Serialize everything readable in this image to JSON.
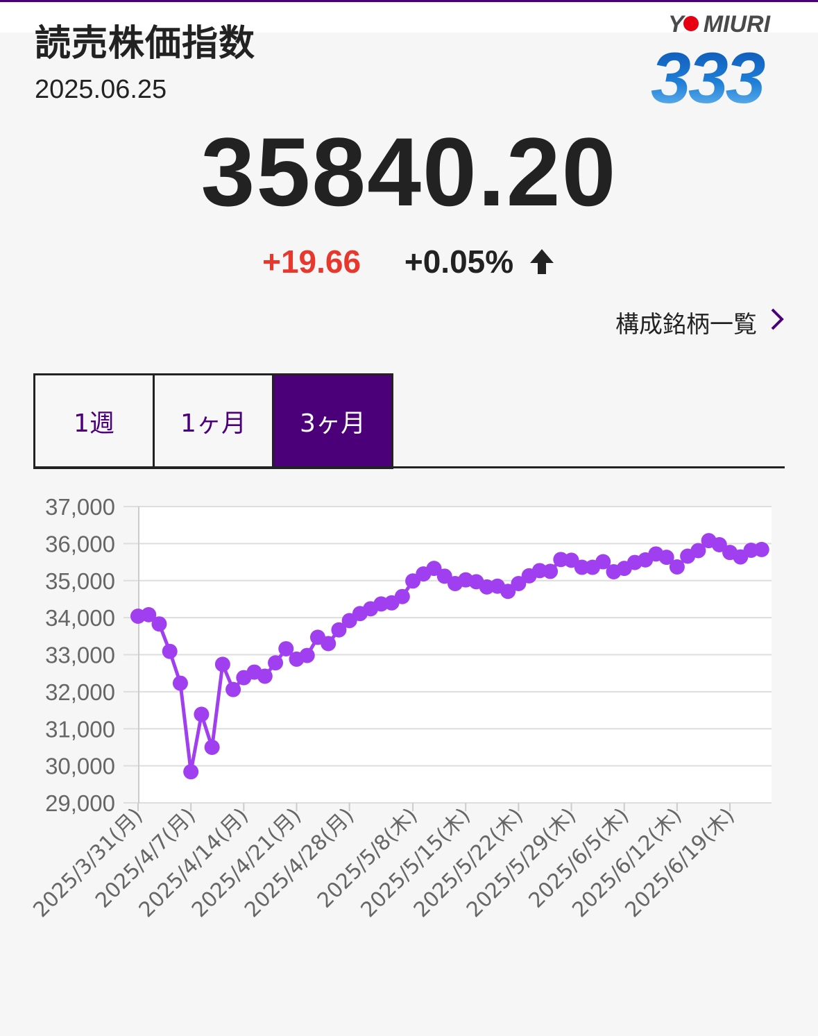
{
  "header": {
    "title": "読売株価指数",
    "date": "2025.06.25"
  },
  "logo": {
    "brand_left": "Y",
    "brand_right": "MIURI",
    "number": "333",
    "dot_color": "#e60012",
    "number_color": "#1f7fd6"
  },
  "quote": {
    "value": "35840.20",
    "change": "+19.66",
    "change_pct": "+0.05%",
    "direction_icon": "arrow-up-icon",
    "change_color": "#e8382e"
  },
  "link": {
    "label": "構成銘柄一覧",
    "icon": "chevron-right-icon"
  },
  "tabs": [
    {
      "label": "1週",
      "active": false
    },
    {
      "label": "1ヶ月",
      "active": false
    },
    {
      "label": "3ヶ月",
      "active": true
    }
  ],
  "colors": {
    "accent": "#4b007a",
    "series": "#a03ff0",
    "grid": "#dddddd"
  },
  "chart_data": {
    "type": "line",
    "title": "",
    "xlabel": "",
    "ylabel": "",
    "ylim": [
      29000,
      37000
    ],
    "y_ticks": [
      29000,
      30000,
      31000,
      32000,
      33000,
      34000,
      35000,
      36000,
      37000
    ],
    "y_tick_labels": [
      "29,000",
      "30,000",
      "31,000",
      "32,000",
      "33,000",
      "34,000",
      "35,000",
      "36,000",
      "37,000"
    ],
    "x_tick_labels": [
      {
        "index": 0,
        "label": "2025/3/31(月)"
      },
      {
        "index": 5,
        "label": "2025/4/7(月)"
      },
      {
        "index": 10,
        "label": "2025/4/14(月)"
      },
      {
        "index": 15,
        "label": "2025/4/21(月)"
      },
      {
        "index": 20,
        "label": "2025/4/28(月)"
      },
      {
        "index": 26,
        "label": "2025/5/8(木)"
      },
      {
        "index": 31,
        "label": "2025/5/15(木)"
      },
      {
        "index": 36,
        "label": "2025/5/22(木)"
      },
      {
        "index": 41,
        "label": "2025/5/29(木)"
      },
      {
        "index": 46,
        "label": "2025/6/5(木)"
      },
      {
        "index": 51,
        "label": "2025/6/12(木)"
      },
      {
        "index": 56,
        "label": "2025/6/19(木)"
      }
    ],
    "grid": true,
    "legend": "none",
    "series": [
      {
        "values": [
          34040,
          34080,
          33830,
          33090,
          32230,
          29840,
          31390,
          30500,
          32740,
          32060,
          32380,
          32530,
          32420,
          32780,
          33160,
          32880,
          32980,
          33470,
          33300,
          33670,
          33920,
          34110,
          34240,
          34370,
          34400,
          34570,
          34990,
          35180,
          35330,
          35120,
          34920,
          35020,
          34970,
          34830,
          34850,
          34710,
          34920,
          35130,
          35270,
          35250,
          35570,
          35550,
          35360,
          35360,
          35510,
          35240,
          35330,
          35490,
          35560,
          35720,
          35630,
          35370,
          35660,
          35810,
          36080,
          35970,
          35760,
          35640,
          35820,
          35840
        ]
      }
    ]
  }
}
